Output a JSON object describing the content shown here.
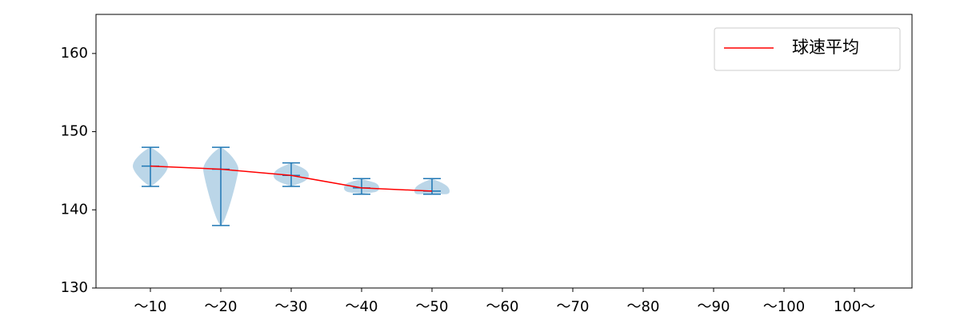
{
  "chart_data": {
    "type": "violin",
    "categories": [
      "～10",
      "～20",
      "～30",
      "～40",
      "～50",
      "～60",
      "～70",
      "～80",
      "～90",
      "～100",
      "100～"
    ],
    "min": [
      143,
      138,
      143,
      142,
      142,
      null,
      null,
      null,
      null,
      null,
      null
    ],
    "max": [
      148,
      148,
      146,
      144,
      144,
      null,
      null,
      null,
      null,
      null,
      null
    ],
    "violin_color": "#1f77b4",
    "series": [
      {
        "name": "球速平均",
        "color": "#ff0000",
        "values": [
          145.6,
          145.2,
          144.4,
          142.8,
          142.4,
          null,
          null,
          null,
          null,
          null,
          null
        ]
      }
    ],
    "ylim": [
      130,
      165
    ],
    "yticks": [
      130,
      140,
      150,
      160
    ],
    "legend": "upper right"
  }
}
